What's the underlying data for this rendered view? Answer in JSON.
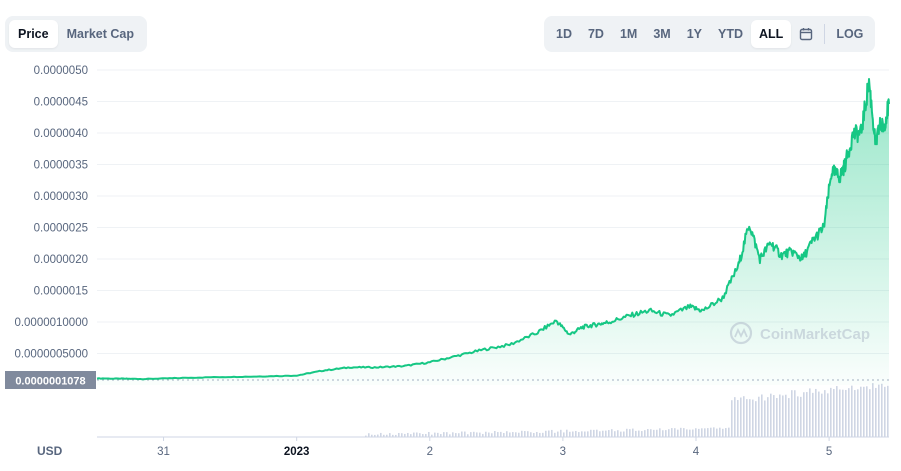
{
  "toggle": {
    "price_label": "Price",
    "market_cap_label": "Market Cap"
  },
  "ranges": {
    "items": [
      "1D",
      "7D",
      "1M",
      "3M",
      "1Y",
      "YTD",
      "ALL"
    ],
    "active": "ALL",
    "calendar_icon": "calendar-icon",
    "log_label": "LOG"
  },
  "watermark": "CoinMarketCap",
  "currency_label": "USD",
  "current_price_label": "0.0000001078",
  "colors": {
    "line": "#16c784",
    "area_top": "#16c784",
    "grid": "#eff2f5",
    "price_tag": "#808a9d",
    "volume": "#cfd6e4"
  },
  "chart_data": {
    "type": "area",
    "y_ticks": [
      "0.0000050",
      "0.0000045",
      "0.0000040",
      "0.0000035",
      "0.0000030",
      "0.0000025",
      "0.0000020",
      "0.0000015",
      "0.0000010000",
      "0.0000005000"
    ],
    "ylim": [
      0,
      5e-06
    ],
    "x_ticks": [
      {
        "label": "31",
        "t": 0.5
      },
      {
        "label": "2023",
        "t": 1.5
      },
      {
        "label": "2",
        "t": 2.5
      },
      {
        "label": "3",
        "t": 3.5
      },
      {
        "label": "4",
        "t": 4.5
      },
      {
        "label": "5",
        "t": 5.5
      }
    ],
    "xlim": [
      0,
      5.95
    ],
    "series": [
      {
        "t": [
          0,
          0.2,
          0.35,
          0.6,
          0.9,
          1.2,
          1.5,
          1.7,
          1.9,
          2.1,
          2.3,
          2.5,
          2.7,
          2.9,
          3.1,
          3.3,
          3.45,
          3.55,
          3.65,
          3.75,
          3.85,
          4.0,
          4.15,
          4.3,
          4.45,
          4.55,
          4.7,
          4.82,
          4.9,
          4.98,
          5.06,
          5.14,
          5.22,
          5.3,
          5.38,
          5.46,
          5.52,
          5.58,
          5.62,
          5.68,
          5.74,
          5.8,
          5.85,
          5.88,
          5.91,
          5.95
        ],
        "price": [
          1.05e-07,
          1e-07,
          9.5e-08,
          1.1e-07,
          1.25e-07,
          1.35e-07,
          1.5e-07,
          2.3e-07,
          2.8e-07,
          2.8e-07,
          3e-07,
          3.6e-07,
          4.6e-07,
          5.6e-07,
          6.4e-07,
          8.2e-07,
          1.02e-06,
          8e-07,
          9.2e-07,
          9.6e-07,
          1e-06,
          1.1e-06,
          1.18e-06,
          1.1e-06,
          1.24e-06,
          1.18e-06,
          1.38e-06,
          1.9e-06,
          2.56e-06,
          2e-06,
          2.26e-06,
          2.06e-06,
          2.12e-06,
          2e-06,
          2.3e-06,
          2.5e-06,
          3.4e-06,
          3.3e-06,
          3.5e-06,
          3.98e-06,
          4e-06,
          4.82e-06,
          3.8e-06,
          4.12e-06,
          4.1e-06,
          4.46e-06
        ]
      }
    ],
    "current_price": 1.078e-07,
    "currency": "USD"
  }
}
